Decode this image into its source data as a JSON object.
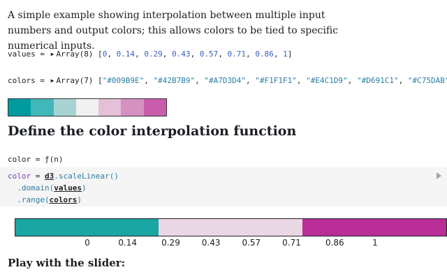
{
  "intro": "A simple example showing interpolation between multiple input numbers and output colors; this allows colors to be tied to specific numerical inputs.",
  "values_cell": {
    "name": "values",
    "eq": " = ",
    "type": "Array(8)",
    "items": [
      "0",
      "0.14",
      "0.29",
      "0.43",
      "0.57",
      "0.71",
      "0.86",
      "1"
    ]
  },
  "colors_cell": {
    "name": "colors",
    "eq": " = ",
    "type": "Array(7)",
    "items": [
      "\"#009B9E\"",
      "\"#42B7B9\"",
      "\"#A7D3D4\"",
      "\"#F1F1F1\"",
      "\"#E4C1D9\"",
      "\"#D691C1\"",
      "\"#C75DAB\""
    ]
  },
  "swatch_colors": [
    "#009B9E",
    "#42B7B9",
    "#A7D3D4",
    "#F1F1F1",
    "#E4C1D9",
    "#D691C1",
    "#C75DAB"
  ],
  "heading": "Define the color interpolation function",
  "color_cell": {
    "name": "color",
    "eq": " = ",
    "value": "ƒ(n)"
  },
  "code": {
    "line1_var": "color",
    "line1_eq": " = ",
    "line1_lib": "d3",
    "line1_fn": ".scaleLinear()",
    "line2_fn": ".domain(",
    "line2_arg": "values",
    "line2_close": ")",
    "line3_fn": ".range(",
    "line3_arg": "colors",
    "line3_close": ")"
  },
  "legend": {
    "segments": [
      {
        "color": "#1aa6a3",
        "fraction": 0.333
      },
      {
        "color": "#ead7e4",
        "fraction": 0.333
      },
      {
        "color": "#b82d96",
        "fraction": 0.334
      }
    ],
    "ticks": [
      {
        "label": "0",
        "value": 0
      },
      {
        "label": "0.14",
        "value": 0.14
      },
      {
        "label": "0.29",
        "value": 0.29
      },
      {
        "label": "0.43",
        "value": 0.43
      },
      {
        "label": "0.57",
        "value": 0.57
      },
      {
        "label": "0.71",
        "value": 0.71
      },
      {
        "label": "0.86",
        "value": 0.86
      },
      {
        "label": "1",
        "value": 1
      }
    ]
  },
  "subheading": "Play with the slider:"
}
